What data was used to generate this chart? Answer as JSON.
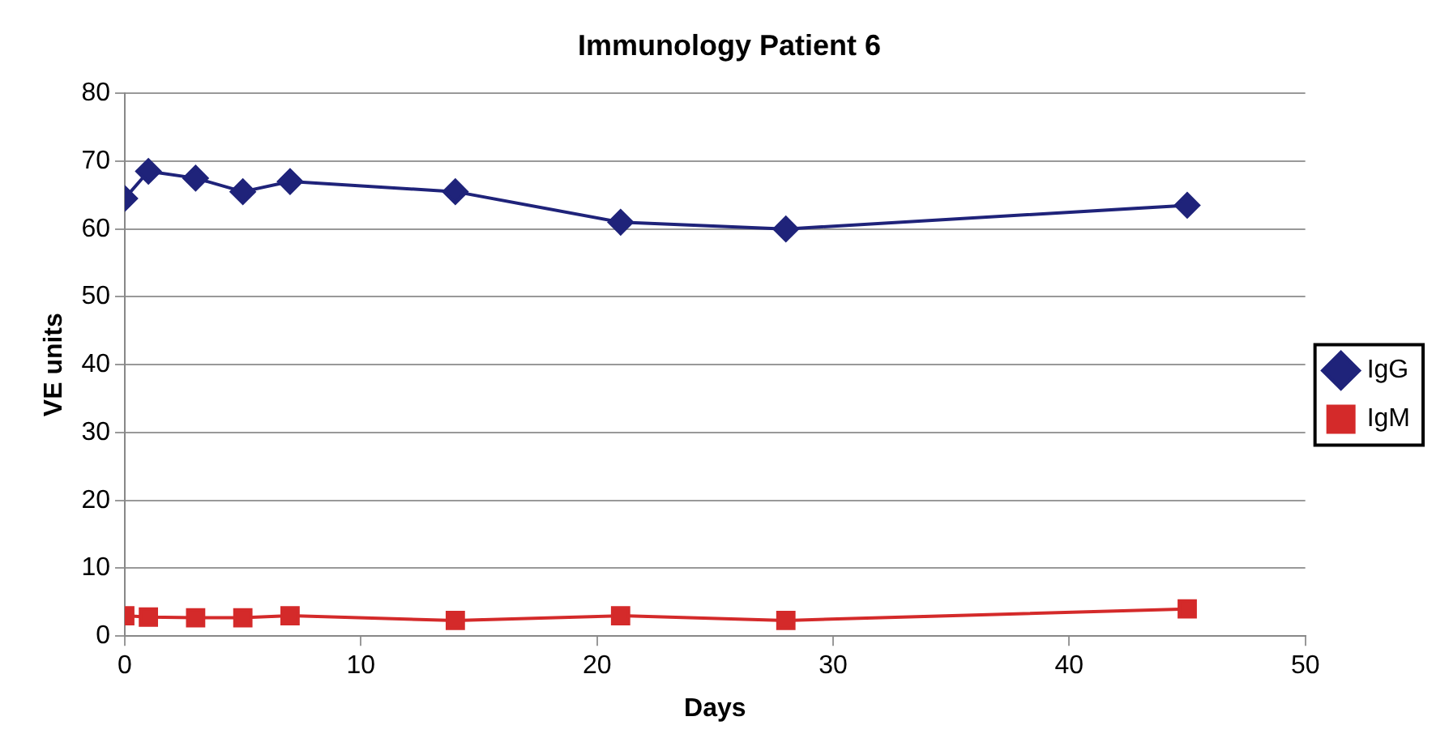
{
  "chart_data": {
    "type": "line",
    "title": "Immunology Patient 6",
    "xlabel": "Days",
    "ylabel": "VE units",
    "x": [
      0,
      1,
      3,
      5,
      7,
      14,
      21,
      28,
      45
    ],
    "series": [
      {
        "name": "IgG",
        "color": "#1f237a",
        "marker": "diamond",
        "values": [
          64.5,
          68.5,
          67.5,
          65.5,
          67,
          65.5,
          61,
          60,
          63.5
        ]
      },
      {
        "name": "IgM",
        "color": "#d42a2a",
        "marker": "square",
        "values": [
          3,
          2.8,
          2.7,
          2.7,
          3,
          2.3,
          3,
          2.3,
          4
        ]
      }
    ],
    "xlim": [
      0,
      50
    ],
    "xticks": [
      0,
      10,
      20,
      30,
      40,
      50
    ],
    "ylim": [
      0,
      80
    ],
    "yticks": [
      0,
      10,
      20,
      30,
      40,
      50,
      60,
      70,
      80
    ],
    "grid": "y",
    "legend": "right",
    "line_style": "solid"
  }
}
